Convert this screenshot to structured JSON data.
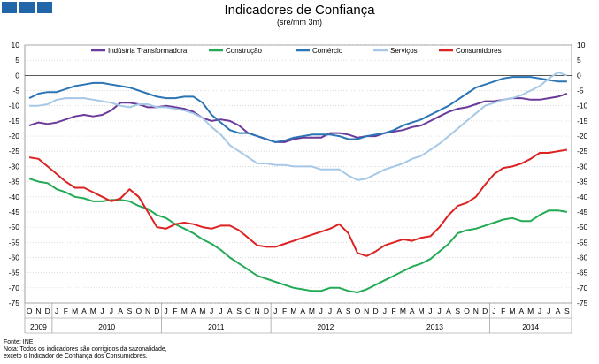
{
  "header": {
    "logo_colors": [
      "#2266aa",
      "#2266aa",
      "#2266aa"
    ],
    "title": "Indicadores de Confiança",
    "subtitle": "(sre/mm 3m)"
  },
  "footer": {
    "source": "Fonte: INE",
    "note_line1": "Nota: Todos os indicadores são corrigidos da sazonalidade,",
    "note_line2": "exceto o Indicador de Confiança dos Consumidores."
  },
  "chart_data": {
    "type": "line",
    "x": [
      "2009-10",
      "2009-11",
      "2009-12",
      "2010-01",
      "2010-02",
      "2010-03",
      "2010-04",
      "2010-05",
      "2010-06",
      "2010-07",
      "2010-08",
      "2010-09",
      "2010-10",
      "2010-11",
      "2010-12",
      "2011-01",
      "2011-02",
      "2011-03",
      "2011-04",
      "2011-05",
      "2011-06",
      "2011-07",
      "2011-08",
      "2011-09",
      "2011-10",
      "2011-11",
      "2011-12",
      "2012-01",
      "2012-02",
      "2012-03",
      "2012-04",
      "2012-05",
      "2012-06",
      "2012-07",
      "2012-08",
      "2012-09",
      "2012-10",
      "2012-11",
      "2012-12",
      "2013-01",
      "2013-02",
      "2013-03",
      "2013-04",
      "2013-05",
      "2013-06",
      "2013-07",
      "2013-08",
      "2013-09",
      "2013-10",
      "2013-11",
      "2013-12",
      "2014-01",
      "2014-02",
      "2014-03",
      "2014-04",
      "2014-05",
      "2014-06",
      "2014-07",
      "2014-08",
      "2014-09"
    ],
    "x_tick_labels": [
      "O",
      "N",
      "D",
      "J",
      "F",
      "M",
      "A",
      "M",
      "J",
      "J",
      "A",
      "S",
      "O",
      "N",
      "D",
      "J",
      "F",
      "M",
      "A",
      "M",
      "J",
      "J",
      "A",
      "S",
      "O",
      "N",
      "D",
      "J",
      "F",
      "M",
      "A",
      "M",
      "J",
      "J",
      "A",
      "S",
      "O",
      "N",
      "D",
      "J",
      "F",
      "M",
      "A",
      "M",
      "J",
      "J",
      "A",
      "S",
      "O",
      "N",
      "D",
      "J",
      "F",
      "M",
      "A",
      "M",
      "J",
      "J",
      "A",
      "S"
    ],
    "year_labels": [
      {
        "label": "2009",
        "start": 0,
        "end": 2
      },
      {
        "label": "2010",
        "start": 3,
        "end": 14
      },
      {
        "label": "2011",
        "start": 15,
        "end": 26
      },
      {
        "label": "2012",
        "start": 27,
        "end": 38
      },
      {
        "label": "2013",
        "start": 39,
        "end": 50
      },
      {
        "label": "2014",
        "start": 51,
        "end": 59
      }
    ],
    "ylim": [
      -75,
      10
    ],
    "y_ticks": [
      10,
      5,
      0,
      -5,
      -10,
      -15,
      -20,
      -25,
      -30,
      -35,
      -40,
      -45,
      -50,
      -55,
      -60,
      -65,
      -70,
      -75
    ],
    "y_tick_labels": [
      "10",
      "5",
      "0",
      "-5",
      "-10",
      "-15",
      "-20",
      "-25",
      "-30",
      "-35",
      "-40",
      "-45",
      "-50",
      "-55",
      "-60",
      "-65",
      "-70",
      "-75"
    ],
    "grid": true,
    "legend_position": "top",
    "series": [
      {
        "name": "Indústria Transformadora",
        "color": "#6b3a9a",
        "values": [
          -16.5,
          -15.5,
          -16,
          -15.5,
          -14.5,
          -13.5,
          -13,
          -13.5,
          -13,
          -11.5,
          -9,
          -9,
          -9.5,
          -10.5,
          -10.5,
          -10,
          -10.5,
          -11,
          -12,
          -14,
          -15,
          -14.5,
          -15,
          -16.5,
          -19,
          -20,
          -21,
          -22,
          -22,
          -21,
          -20.5,
          -20.5,
          -20.5,
          -19,
          -19,
          -19.5,
          -20.5,
          -20,
          -20,
          -19,
          -18.5,
          -18,
          -17,
          -16.5,
          -15,
          -13.5,
          -12,
          -11,
          -10.5,
          -9.5,
          -8.5,
          -8.5,
          -8,
          -7.5,
          -7.5,
          -8,
          -8,
          -7.5,
          -7,
          -6
        ]
      },
      {
        "name": "Construção",
        "color": "#22aa55",
        "values": [
          -34,
          -35,
          -35.5,
          -37.5,
          -38.5,
          -40,
          -40.5,
          -41.5,
          -41.5,
          -41,
          -41,
          -41.5,
          -43,
          -44,
          -46,
          -47,
          -49,
          -50.5,
          -52,
          -54,
          -55.5,
          -57.5,
          -60,
          -62,
          -64,
          -66,
          -67,
          -68,
          -69,
          -70,
          -70.5,
          -71,
          -71,
          -70,
          -70,
          -71,
          -71.5,
          -70.5,
          -69,
          -67.5,
          -66,
          -64.5,
          -63,
          -62,
          -60.5,
          -58,
          -55.5,
          -52,
          -51,
          -50.5,
          -49.5,
          -48.5,
          -47.5,
          -47,
          -48,
          -48,
          -46,
          -44.5,
          -44.5,
          -45
        ]
      },
      {
        "name": "Comércio",
        "color": "#2b74b5",
        "values": [
          -7.5,
          -6,
          -5.5,
          -5.5,
          -4.5,
          -3.5,
          -3,
          -2.5,
          -2.5,
          -3,
          -3.5,
          -4,
          -5,
          -6,
          -7,
          -7.5,
          -7.5,
          -7,
          -7,
          -9,
          -13,
          -15.5,
          -18,
          -19,
          -19,
          -20,
          -21,
          -22,
          -21.5,
          -20.5,
          -20,
          -19.5,
          -19.5,
          -19.5,
          -20,
          -21,
          -21,
          -20,
          -19.5,
          -19,
          -18,
          -16.5,
          -15.5,
          -14.5,
          -13,
          -11.5,
          -10,
          -8,
          -6,
          -4,
          -3,
          -2,
          -1,
          -0.5,
          -0.5,
          -0.5,
          -1,
          -1.5,
          -2,
          -2
        ]
      },
      {
        "name": "Serviços",
        "color": "#a6c8e6",
        "values": [
          -10,
          -10,
          -9.5,
          -8,
          -7.5,
          -7.5,
          -7.5,
          -8,
          -8.5,
          -9,
          -10,
          -10.5,
          -9.5,
          -9.5,
          -10.5,
          -10.5,
          -11,
          -11.5,
          -12.5,
          -14,
          -17,
          -19.5,
          -23,
          -25,
          -27,
          -29,
          -29,
          -29.5,
          -29.5,
          -30,
          -30,
          -30,
          -31,
          -31,
          -31,
          -33,
          -34.5,
          -34,
          -32.5,
          -31,
          -30,
          -29,
          -27.5,
          -26.5,
          -24.5,
          -22.5,
          -20,
          -17.5,
          -15,
          -12.5,
          -10,
          -9,
          -8,
          -7.5,
          -6.5,
          -5,
          -3.5,
          -1,
          1,
          0
        ]
      },
      {
        "name": "Consumidores",
        "color": "#dd2222",
        "values": [
          -27,
          -27.5,
          -30,
          -32.5,
          -35,
          -37,
          -37,
          -38.5,
          -40,
          -41.5,
          -40.5,
          -37.5,
          -40,
          -45,
          -50,
          -50.5,
          -49,
          -48.5,
          -49,
          -50,
          -50.5,
          -49.5,
          -49.5,
          -51,
          -53.5,
          -56,
          -56.5,
          -56.5,
          -55.5,
          -54.5,
          -53.5,
          -52.5,
          -51.5,
          -50.5,
          -49,
          -52,
          -58.5,
          -59.5,
          -58,
          -56,
          -55,
          -54,
          -54.5,
          -53.5,
          -53,
          -50,
          -46,
          -43,
          -42,
          -40,
          -36,
          -32.5,
          -30.5,
          -30,
          -29,
          -27.5,
          -25.5,
          -25.5,
          -25,
          -24.5
        ]
      }
    ]
  }
}
